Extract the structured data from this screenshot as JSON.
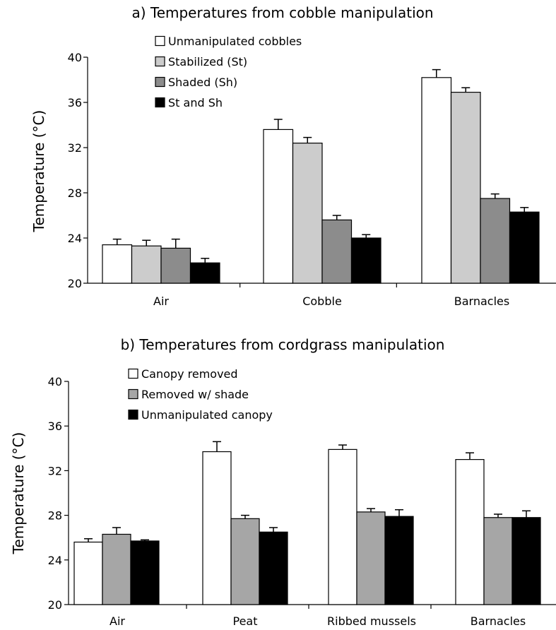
{
  "chart_data": [
    {
      "type": "bar",
      "title": "a) Temperatures from cobble manipulation",
      "ylabel": "Temperature (°C)",
      "xlabel": "",
      "ylim": [
        20,
        40
      ],
      "yticks": [
        20,
        24,
        28,
        32,
        36,
        40
      ],
      "legend_position": "top-left",
      "categories": [
        "Air",
        "Cobble",
        "Barnacles"
      ],
      "series": [
        {
          "name": "Unmanipulated cobbles",
          "color": "#ffffff",
          "values": [
            23.4,
            33.6,
            38.2
          ],
          "errors": [
            0.5,
            0.9,
            0.7
          ]
        },
        {
          "name": "Stabilized (St)",
          "color": "#cccccc",
          "values": [
            23.3,
            32.4,
            36.9
          ],
          "errors": [
            0.5,
            0.5,
            0.4
          ]
        },
        {
          "name": "Shaded (Sh)",
          "color": "#8c8c8c",
          "values": [
            23.1,
            25.6,
            27.5
          ],
          "errors": [
            0.8,
            0.4,
            0.4
          ]
        },
        {
          "name": "St and Sh",
          "color": "#000000",
          "values": [
            21.8,
            24.0,
            26.3
          ],
          "errors": [
            0.4,
            0.3,
            0.4
          ]
        }
      ]
    },
    {
      "type": "bar",
      "title": "b) Temperatures from cordgrass manipulation",
      "ylabel": "Temperature (°C)",
      "xlabel": "",
      "ylim": [
        20,
        40
      ],
      "yticks": [
        20,
        24,
        28,
        32,
        36,
        40
      ],
      "legend_position": "top-left",
      "categories": [
        "Air",
        "Peat",
        "Ribbed mussels",
        "Barnacles"
      ],
      "series": [
        {
          "name": "Canopy removed",
          "color": "#ffffff",
          "values": [
            25.6,
            33.7,
            33.9,
            33.0
          ],
          "errors": [
            0.3,
            0.9,
            0.4,
            0.6
          ]
        },
        {
          "name": "Removed w/ shade",
          "color": "#a6a6a6",
          "values": [
            26.3,
            27.7,
            28.3,
            27.8
          ],
          "errors": [
            0.6,
            0.3,
            0.3,
            0.3
          ]
        },
        {
          "name": "Unmanipulated canopy",
          "color": "#000000",
          "values": [
            25.7,
            26.5,
            27.9,
            27.8
          ],
          "errors": [
            0.1,
            0.4,
            0.6,
            0.6
          ]
        }
      ]
    }
  ]
}
